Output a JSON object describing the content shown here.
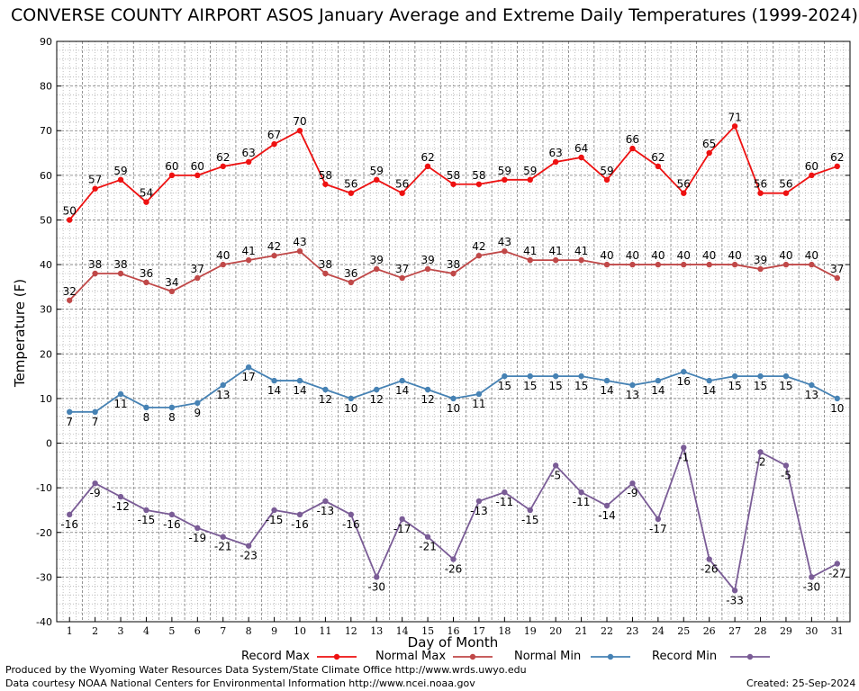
{
  "chart_data": {
    "type": "line",
    "title": "CONVERSE COUNTY AIRPORT ASOS January Average and Extreme Daily Temperatures (1999-2024)",
    "xlabel": "Day of Month",
    "ylabel": "Temperature (F)",
    "x": [
      1,
      2,
      3,
      4,
      5,
      6,
      7,
      8,
      9,
      10,
      11,
      12,
      13,
      14,
      15,
      16,
      17,
      18,
      19,
      20,
      21,
      22,
      23,
      24,
      25,
      26,
      27,
      28,
      29,
      30,
      31
    ],
    "ylim": [
      -40,
      90
    ],
    "yticks": [
      -40,
      -30,
      -20,
      -10,
      0,
      10,
      20,
      30,
      40,
      50,
      60,
      70,
      80,
      90
    ],
    "grid": true,
    "legend_position": "bottom",
    "series": [
      {
        "name": "Record Max",
        "color": "#ee1111",
        "values": [
          50,
          57,
          59,
          54,
          60,
          60,
          62,
          63,
          67,
          70,
          58,
          56,
          59,
          56,
          62,
          58,
          58,
          59,
          59,
          63,
          64,
          59,
          66,
          62,
          56,
          65,
          71,
          56,
          56,
          60,
          62
        ]
      },
      {
        "name": "Normal Max",
        "color": "#c04848",
        "values": [
          32,
          38,
          38,
          36,
          34,
          37,
          40,
          41,
          42,
          43,
          38,
          36,
          39,
          37,
          39,
          38,
          42,
          43,
          41,
          41,
          41,
          40,
          40,
          40,
          40,
          40,
          40,
          39,
          40,
          40,
          37
        ]
      },
      {
        "name": "Normal Min",
        "color": "#4682b4",
        "values": [
          7,
          7,
          11,
          8,
          8,
          9,
          13,
          17,
          14,
          14,
          12,
          10,
          12,
          14,
          12,
          10,
          11,
          15,
          15,
          15,
          15,
          14,
          13,
          14,
          16,
          14,
          15,
          15,
          15,
          13,
          10
        ]
      },
      {
        "name": "Record Min",
        "color": "#7a5c96",
        "values": [
          -16,
          -9,
          -12,
          -15,
          -16,
          -19,
          -21,
          -23,
          -15,
          -16,
          -13,
          -16,
          -30,
          -17,
          -21,
          -26,
          -13,
          -11,
          -15,
          -5,
          -11,
          -14,
          -9,
          -17,
          -1,
          -26,
          -33,
          -2,
          -5,
          -30,
          -27
        ]
      }
    ]
  },
  "footer": {
    "produced_by": "Produced by the Wyoming Water Resources Data System/State Climate Office http://www.wrds.uwyo.edu",
    "courtesy": "Data courtesy NOAA National Centers for Environmental Information http://www.ncei.noaa.gov",
    "created": "Created:  25-Sep-2024"
  }
}
